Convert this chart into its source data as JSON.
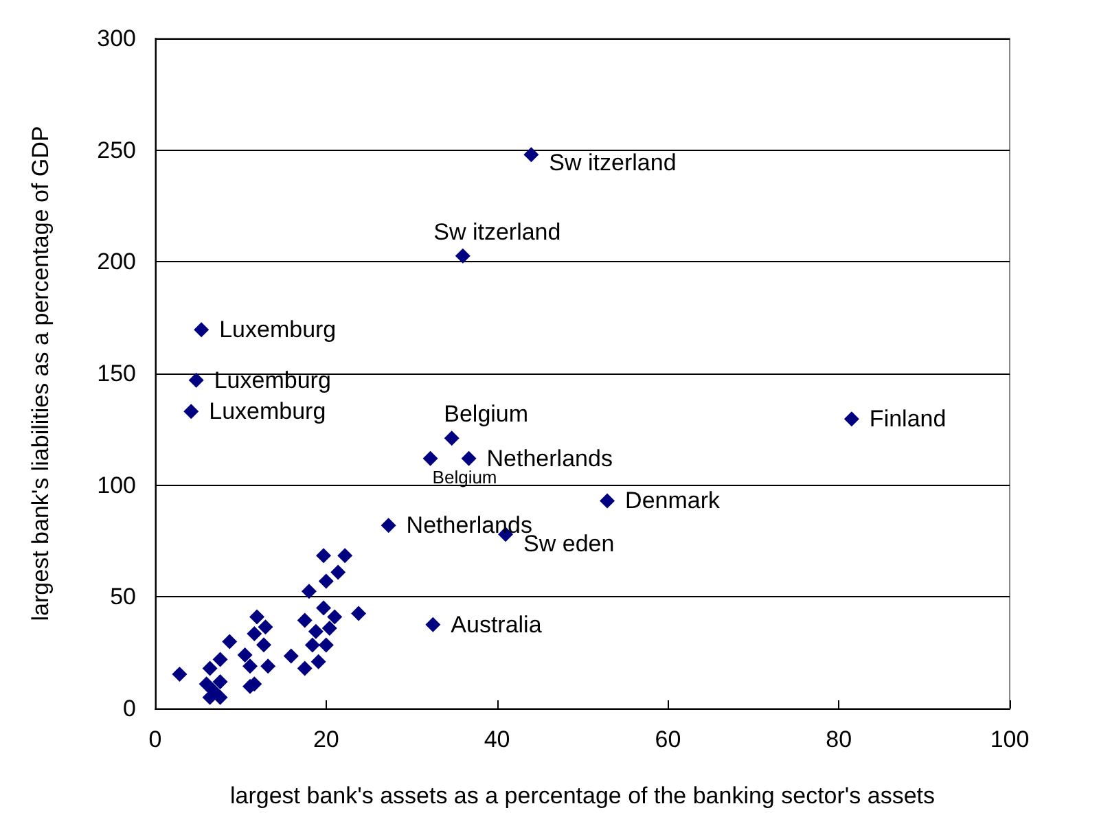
{
  "chart_data": {
    "type": "scatter",
    "xlabel": "largest bank's assets as a percentage of the banking sector's assets",
    "ylabel": "largest bank's liabilities as a percentage of GDP",
    "x": [
      2.85,
      19.7,
      22.2,
      21.4,
      20,
      18,
      23.8,
      17.5,
      19.7,
      21,
      18.8,
      20.4,
      18.4,
      20,
      19.1,
      15.9,
      17.5,
      11.9,
      12.9,
      11.6,
      12.7,
      8.7,
      10.5,
      11.1,
      13.2,
      11.1,
      7.6,
      6.4,
      6,
      7.6,
      6.4,
      7.6,
      6.8,
      11.6,
      5.4,
      4.8,
      4.2,
      34.7,
      32.2,
      36.7,
      81.5,
      52.9,
      27.3,
      41,
      32.5,
      44,
      36
    ],
    "series": [
      {
        "color": "#000080",
        "values": [
          15.4,
          68.5,
          68.5,
          61,
          57,
          52.5,
          42.6,
          39.5,
          45,
          41,
          34.5,
          36,
          28.4,
          28.4,
          21,
          23.5,
          18,
          41,
          36.5,
          33.5,
          28.5,
          30,
          24,
          19,
          19,
          9.9,
          22,
          18,
          11,
          12,
          5,
          5,
          8,
          11,
          169.6,
          147,
          133,
          121,
          112,
          112,
          129.6,
          93,
          82,
          78,
          37.6,
          248,
          202.6
        ]
      }
    ],
    "annotations": [
      {
        "text": "Luxemburg",
        "x": 5.4,
        "y": 169.6
      },
      {
        "text": "Luxemburg",
        "x": 4.8,
        "y": 147
      },
      {
        "text": "Luxemburg",
        "x": 4.2,
        "y": 133
      },
      {
        "text": "Belgium",
        "x": 34.7,
        "y": 121
      },
      {
        "text": "Belgium",
        "x": 32.2,
        "y": 112
      },
      {
        "text": "Netherlands",
        "x": 36.7,
        "y": 112
      },
      {
        "text": "Finland",
        "x": 81.5,
        "y": 129.6
      },
      {
        "text": "Denmark",
        "x": 52.9,
        "y": 93
      },
      {
        "text": "Netherlands",
        "x": 27.3,
        "y": 82
      },
      {
        "text": "Sw eden",
        "x": 41,
        "y": 78
      },
      {
        "text": "Australia",
        "x": 32.5,
        "y": 37.6
      },
      {
        "text": "Sw itzerland",
        "x": 44,
        "y": 248
      },
      {
        "text": "Sw itzerland",
        "x": 36,
        "y": 202.6
      }
    ],
    "xlim": [
      0,
      100
    ],
    "xticks": [
      0,
      20,
      40,
      60,
      80,
      100
    ],
    "ylim": [
      0,
      300
    ],
    "yticks": [
      0,
      50,
      100,
      150,
      200,
      250,
      300
    ],
    "grid": "y",
    "marker": "diamond"
  }
}
